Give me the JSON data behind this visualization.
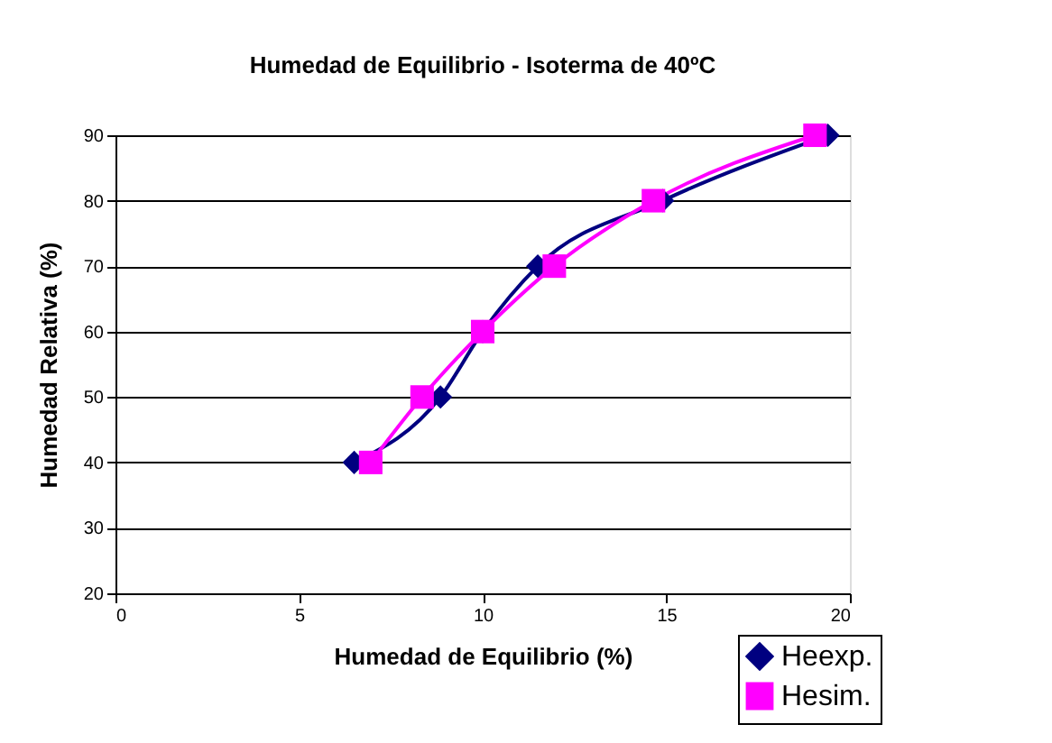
{
  "chart_data": {
    "type": "line",
    "title": "Humedad de Equilibrio - Isoterma de 40ºC",
    "xlabel": "Humedad de Equilibrio (%)",
    "ylabel": "Humedad Relativa (%)",
    "xlim": [
      0,
      20
    ],
    "xticks": [
      0,
      5,
      10,
      15,
      20
    ],
    "ylim": [
      20,
      90
    ],
    "yticks": [
      20,
      30,
      40,
      50,
      60,
      70,
      80,
      90
    ],
    "grid": "y",
    "legend": "bottom right",
    "line_style": "solid",
    "series": [
      {
        "name": "Heexp.",
        "color": "#000080",
        "marker": "diamond",
        "x": [
          6.5,
          8.85,
          10,
          11.5,
          14.9,
          19.4
        ],
        "values": [
          40,
          50,
          60,
          70,
          80,
          90
        ]
      },
      {
        "name": "Hesim.",
        "color": "#ff00ff",
        "marker": "square",
        "x": [
          6.95,
          8.35,
          10,
          11.95,
          14.65,
          19.05
        ],
        "values": [
          40,
          50,
          60,
          70,
          80,
          90
        ]
      }
    ]
  }
}
